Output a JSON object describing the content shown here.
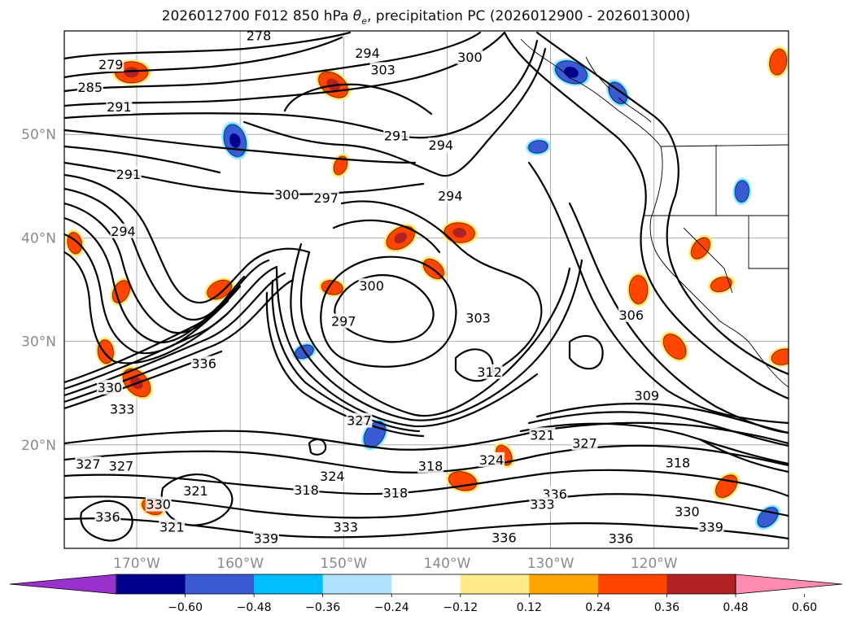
{
  "title": {
    "prefix": "2026012700 F012 850 hPa ",
    "theta": "θ",
    "sub": "e",
    "suffix": ", precipitation PC (2026012900 - 2026013000)"
  },
  "axes": {
    "lat_labels": [
      "50°N",
      "40°N",
      "30°N",
      "20°N"
    ],
    "lon_labels": [
      "170°W",
      "160°W",
      "150°W",
      "140°W",
      "130°W",
      "120°W"
    ]
  },
  "chart_data": {
    "type": "map",
    "title": "2026012700 F012 850 hPa θe, precipitation PC (2026012900 - 2026013000)",
    "variable": "850 hPa equivalent potential temperature (K) contours with precipitation PC shading",
    "lon_range": [
      -177,
      -107
    ],
    "lat_range": [
      10,
      60
    ],
    "lat_ticks": [
      50,
      40,
      30,
      20
    ],
    "lon_ticks": [
      -170,
      -160,
      -150,
      -140,
      -130,
      -120
    ],
    "colorbar": {
      "ticks": [
        "−0.60",
        "−0.48",
        "−0.36",
        "−0.24",
        "−0.12",
        "0.12",
        "0.24",
        "0.36",
        "0.48",
        "0.60"
      ],
      "colors": [
        "#9932cc",
        "#00008b",
        "#3a5bd3",
        "#00bfff",
        "#b0e2ff",
        "#ffffff",
        "#ffeb8a",
        "#ffa500",
        "#ff4500",
        "#b22222",
        "#ff8cb0"
      ]
    },
    "contour_labels": [
      {
        "text": "279",
        "lon": -172.5,
        "lat": 56.7
      },
      {
        "text": "278",
        "lon": -158.2,
        "lat": 59.5
      },
      {
        "text": "285",
        "lon": -174.5,
        "lat": 54.5
      },
      {
        "text": "291",
        "lon": -171.7,
        "lat": 52.6
      },
      {
        "text": "294",
        "lon": -147.7,
        "lat": 57.8
      },
      {
        "text": "303",
        "lon": -146.2,
        "lat": 56.2
      },
      {
        "text": "300",
        "lon": -137.8,
        "lat": 57.4
      },
      {
        "text": "291",
        "lon": -144.9,
        "lat": 49.8
      },
      {
        "text": "294",
        "lon": -140.6,
        "lat": 48.9
      },
      {
        "text": "291",
        "lon": -170.8,
        "lat": 46.1
      },
      {
        "text": "300",
        "lon": -155.5,
        "lat": 44.1
      },
      {
        "text": "297",
        "lon": -151.7,
        "lat": 43.8
      },
      {
        "text": "294",
        "lon": -139.7,
        "lat": 44.0
      },
      {
        "text": "294",
        "lon": -171.3,
        "lat": 40.6
      },
      {
        "text": "300",
        "lon": -147.3,
        "lat": 35.3
      },
      {
        "text": "297",
        "lon": -150.0,
        "lat": 31.9
      },
      {
        "text": "303",
        "lon": -137.0,
        "lat": 32.2
      },
      {
        "text": "306",
        "lon": -122.2,
        "lat": 32.5
      },
      {
        "text": "336",
        "lon": -163.5,
        "lat": 27.8
      },
      {
        "text": "312",
        "lon": -135.9,
        "lat": 27.0
      },
      {
        "text": "309",
        "lon": -120.7,
        "lat": 24.7
      },
      {
        "text": "330",
        "lon": -172.6,
        "lat": 25.5
      },
      {
        "text": "333",
        "lon": -171.4,
        "lat": 23.4
      },
      {
        "text": "327",
        "lon": -148.5,
        "lat": 22.3
      },
      {
        "text": "321",
        "lon": -130.8,
        "lat": 20.9
      },
      {
        "text": "327",
        "lon": -126.7,
        "lat": 20.1
      },
      {
        "text": "318",
        "lon": -117.7,
        "lat": 18.2
      },
      {
        "text": "327",
        "lon": -174.7,
        "lat": 18.1
      },
      {
        "text": "327",
        "lon": -171.5,
        "lat": 17.9
      },
      {
        "text": "318",
        "lon": -141.6,
        "lat": 17.9
      },
      {
        "text": "324",
        "lon": -135.7,
        "lat": 18.5
      },
      {
        "text": "324",
        "lon": -151.1,
        "lat": 16.9
      },
      {
        "text": "318",
        "lon": -153.6,
        "lat": 15.6
      },
      {
        "text": "318",
        "lon": -145.0,
        "lat": 15.3
      },
      {
        "text": "336",
        "lon": -129.6,
        "lat": 15.2
      },
      {
        "text": "333",
        "lon": -130.8,
        "lat": 14.2
      },
      {
        "text": "330",
        "lon": -167.9,
        "lat": 14.2
      },
      {
        "text": "321",
        "lon": -164.3,
        "lat": 15.5
      },
      {
        "text": "330",
        "lon": -116.8,
        "lat": 13.5
      },
      {
        "text": "333",
        "lon": -149.8,
        "lat": 12.0
      },
      {
        "text": "336",
        "lon": -172.8,
        "lat": 13.0
      },
      {
        "text": "336",
        "lon": -123.2,
        "lat": 10.9
      },
      {
        "text": "336",
        "lon": -134.5,
        "lat": 11.0
      },
      {
        "text": "339",
        "lon": -114.5,
        "lat": 12.0
      },
      {
        "text": "339",
        "lon": -157.5,
        "lat": 10.9
      },
      {
        "text": "321",
        "lon": -166.6,
        "lat": 12.0
      }
    ],
    "precip_blobs": [
      {
        "lon": -170.5,
        "lat": 56.0,
        "sign": 1,
        "size": 1.0
      },
      {
        "lon": -151.0,
        "lat": 54.8,
        "sign": 1,
        "size": 1.0
      },
      {
        "lon": -160.5,
        "lat": 49.4,
        "sign": -1,
        "size": 1.0
      },
      {
        "lon": -150.3,
        "lat": 47.0,
        "sign": 1,
        "size": 0.4
      },
      {
        "lon": -144.5,
        "lat": 40.0,
        "sign": 1,
        "size": 0.9
      },
      {
        "lon": -138.8,
        "lat": 40.5,
        "sign": 1,
        "size": 0.9
      },
      {
        "lon": -141.3,
        "lat": 37.0,
        "sign": 1,
        "size": 0.6
      },
      {
        "lon": -176.0,
        "lat": 39.5,
        "sign": 1,
        "size": 0.5
      },
      {
        "lon": -171.5,
        "lat": 34.8,
        "sign": 1,
        "size": 0.6
      },
      {
        "lon": -162.0,
        "lat": 35.0,
        "sign": 1,
        "size": 0.7
      },
      {
        "lon": -151.1,
        "lat": 35.2,
        "sign": 1,
        "size": 0.5
      },
      {
        "lon": -170.0,
        "lat": 26.0,
        "sign": 1,
        "size": 1.0
      },
      {
        "lon": -173.0,
        "lat": 29.0,
        "sign": 1,
        "size": 0.6
      },
      {
        "lon": -147.0,
        "lat": 21.0,
        "sign": -1,
        "size": 0.8
      },
      {
        "lon": -153.8,
        "lat": 29.0,
        "sign": -1,
        "size": 0.4
      },
      {
        "lon": -138.5,
        "lat": 16.5,
        "sign": 1,
        "size": 0.8
      },
      {
        "lon": -118.0,
        "lat": 29.5,
        "sign": 1,
        "size": 0.8
      },
      {
        "lon": -121.5,
        "lat": 35.0,
        "sign": 1,
        "size": 0.8
      },
      {
        "lon": -115.5,
        "lat": 39.0,
        "sign": 1,
        "size": 0.6
      },
      {
        "lon": -113.5,
        "lat": 35.5,
        "sign": 1,
        "size": 0.5
      },
      {
        "lon": -128.0,
        "lat": 56.0,
        "sign": -1,
        "size": 1.0
      },
      {
        "lon": -123.5,
        "lat": 54.0,
        "sign": -1,
        "size": 0.6
      },
      {
        "lon": -111.5,
        "lat": 44.5,
        "sign": -1,
        "size": 0.5
      },
      {
        "lon": -113.0,
        "lat": 16.0,
        "sign": 1,
        "size": 0.7
      },
      {
        "lon": -107.5,
        "lat": 28.5,
        "sign": 1,
        "size": 0.6
      },
      {
        "lon": -168.5,
        "lat": 14.0,
        "sign": 1,
        "size": 0.5
      },
      {
        "lon": -134.5,
        "lat": 19.0,
        "sign": 1,
        "size": 0.5
      },
      {
        "lon": -108.0,
        "lat": 57.0,
        "sign": 1,
        "size": 0.7
      },
      {
        "lon": -109.0,
        "lat": 13.0,
        "sign": -1,
        "size": 0.6
      },
      {
        "lon": -131.2,
        "lat": 48.8,
        "sign": -1,
        "size": 0.4
      }
    ]
  }
}
